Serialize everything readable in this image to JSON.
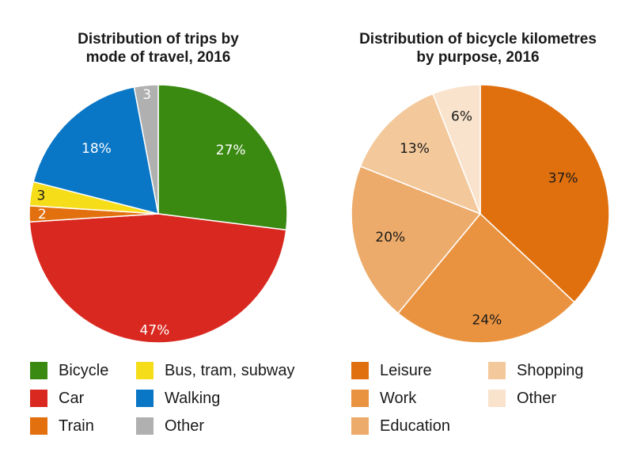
{
  "chart_data": [
    {
      "type": "pie",
      "title": "Distribution of trips by mode of travel, 2016",
      "title_lines": [
        "Distribution of trips by",
        "mode of travel, 2016"
      ],
      "categories": [
        "Bicycle",
        "Car",
        "Train",
        "Bus, tram, subway",
        "Walking",
        "Other"
      ],
      "values": [
        27,
        47,
        2,
        3,
        18,
        3
      ],
      "data_labels": [
        "27%",
        "47%",
        "2",
        "3",
        "18%",
        "3"
      ],
      "colors": [
        "#3a8a12",
        "#d9281f",
        "#e3700f",
        "#f5dd19",
        "#0a76c6",
        "#b0b0b0"
      ],
      "legend": [
        "Bicycle",
        "Car",
        "Train",
        "Bus, tram, subway",
        "Walking",
        "Other"
      ],
      "legend_placement": "bottom"
    },
    {
      "type": "pie",
      "title": "Distribution of bicycle kilometres by purpose, 2016",
      "title_lines": [
        "Distribution of bicycle kilometres",
        "by purpose, 2016"
      ],
      "categories": [
        "Leisure",
        "Work",
        "Education",
        "Shopping",
        "Other"
      ],
      "values": [
        37,
        24,
        20,
        13,
        6
      ],
      "data_labels": [
        "37%",
        "24%",
        "20%",
        "13%",
        "6%"
      ],
      "colors": [
        "#e0700e",
        "#e99340",
        "#edab6b",
        "#f3c89b",
        "#f9e3cc"
      ],
      "legend": [
        "Leisure",
        "Work",
        "Education",
        "Shopping",
        "Other"
      ],
      "legend_placement": "bottom"
    }
  ]
}
